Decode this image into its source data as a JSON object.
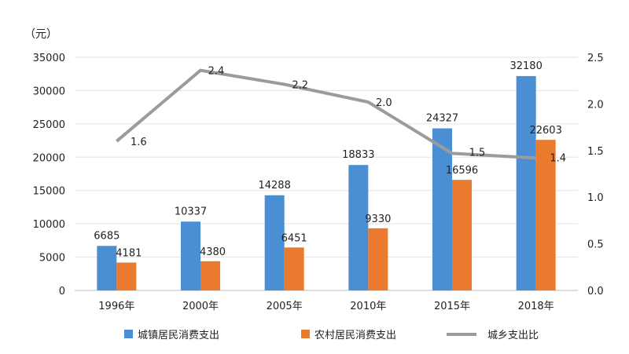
{
  "chart_data": {
    "type": "bar",
    "categories": [
      "1996年",
      "2000年",
      "2005年",
      "2010年",
      "2015年",
      "2018年"
    ],
    "y_unit_label": "（元）",
    "ylim": [
      0,
      35000
    ],
    "yticks": [
      "0",
      "5000",
      "10000",
      "15000",
      "20000",
      "25000",
      "30000",
      "35000"
    ],
    "y2lim": [
      0,
      2.5
    ],
    "y2ticks": [
      "0.0",
      "0.5",
      "1.0",
      "1.5",
      "2.0",
      "2.5"
    ],
    "grid": true,
    "legend_position": "bottom",
    "series": [
      {
        "name": "城镇居民消费支出",
        "type": "bar",
        "axis": "left",
        "color": "#4a8fd4",
        "values": [
          6685,
          10337,
          14288,
          18833,
          24327,
          32180
        ],
        "labels": [
          "6685",
          "10337",
          "14288",
          "18833",
          "24327",
          "32180"
        ]
      },
      {
        "name": "农村居民消费支出",
        "type": "bar",
        "axis": "left",
        "color": "#ea7a2e",
        "values": [
          4181,
          4380,
          6451,
          9330,
          16596,
          22603
        ],
        "labels": [
          "4181",
          "4380",
          "6451",
          "9330",
          "16596",
          "22603"
        ]
      },
      {
        "name": "城乡支出比",
        "type": "line",
        "axis": "right",
        "color": "#9b9b9b",
        "values": [
          1.6,
          2.36,
          2.21,
          2.02,
          1.47,
          1.42
        ],
        "labels": [
          "1.6",
          "2.4",
          "2.2",
          "2.0",
          "1.5",
          "1.4"
        ]
      }
    ]
  }
}
